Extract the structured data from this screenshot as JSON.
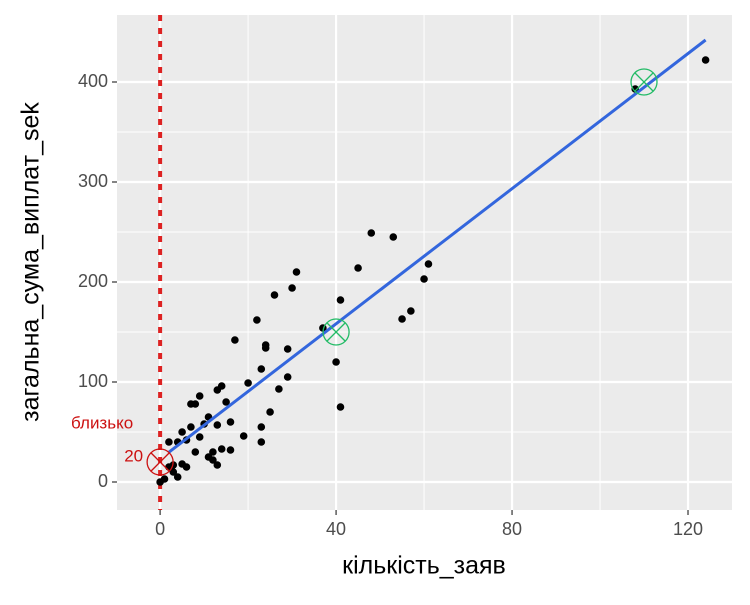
{
  "chart_data": {
    "type": "scatter",
    "x_label": "кількість_заяв",
    "y_label": "загальна_сума_виплат_sek",
    "xlim": [
      -9.8,
      130
    ],
    "ylim": [
      -28,
      467
    ],
    "xticks": [
      0,
      40,
      80,
      120
    ],
    "yticks": [
      0,
      100,
      200,
      300,
      400
    ],
    "x_minor_grid": [
      20,
      60,
      100
    ],
    "y_minor_grid": [
      50,
      150,
      250,
      350
    ],
    "grid": true,
    "points": {
      "color": "#000000",
      "x": [
        124,
        108,
        48,
        53,
        45,
        61,
        60,
        57,
        55,
        41,
        37,
        40,
        41,
        31,
        30,
        26,
        22,
        24,
        24,
        29,
        17,
        23,
        20,
        29,
        27,
        25,
        23,
        23,
        19,
        14,
        13,
        15,
        11,
        8,
        7,
        9,
        10,
        7,
        5,
        13,
        16,
        4,
        2,
        6,
        12,
        11,
        16,
        14,
        13,
        3,
        4,
        2,
        3,
        5,
        6,
        8,
        0,
        1,
        9,
        12
      ],
      "y": [
        422,
        393,
        249,
        245,
        214,
        218,
        203,
        171,
        163,
        182,
        154,
        120,
        75,
        210,
        194,
        187,
        162,
        137,
        134,
        133,
        142,
        113,
        99,
        105,
        93,
        70,
        55,
        40,
        46,
        96,
        92,
        80,
        65,
        78,
        78,
        86,
        58,
        55,
        50,
        57,
        60,
        40,
        40,
        42,
        22,
        25,
        32,
        33,
        17,
        10,
        5,
        15,
        17,
        18,
        15,
        30,
        0,
        3,
        45,
        30
      ]
    },
    "fit_line": {
      "color": "#3366dd",
      "x": [
        2,
        124
      ],
      "y": [
        29.8,
        442
      ]
    },
    "vline": {
      "x": 0,
      "color": "#dd2222"
    },
    "markers": [
      {
        "x": 0,
        "y": 20,
        "color": "#cc1111",
        "label": "близько"
      },
      {
        "x": 40,
        "y": 150,
        "color": "#22bb66"
      },
      {
        "x": 110,
        "y": 400,
        "color": "#22bb66"
      }
    ]
  }
}
